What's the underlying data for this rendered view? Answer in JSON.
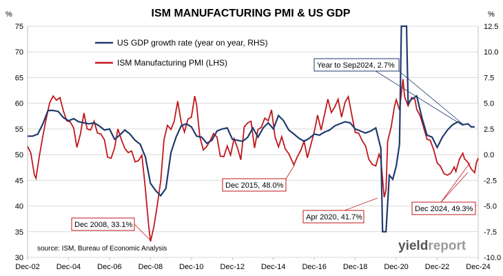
{
  "chart_data": {
    "type": "line",
    "title": "ISM MANUFACTURING PMI & US GDP",
    "left_unit": "%",
    "right_unit": "%",
    "left_axis": {
      "min": 30,
      "max": 75,
      "step": 5,
      "labels": [
        "30",
        "35",
        "40",
        "45",
        "50",
        "55",
        "60",
        "65",
        "70",
        "75"
      ]
    },
    "right_axis": {
      "min": -10,
      "max": 12.5,
      "step": 2.5,
      "labels": [
        "-10.0",
        "-7.5",
        "-5.0",
        "-2.5",
        "0.0",
        "2.5",
        "5.0",
        "7.5",
        "10.0",
        "12.5"
      ]
    },
    "x_axis": {
      "min": 2002.92,
      "max": 2024.92,
      "labels": [
        "Dec-02",
        "Dec-04",
        "Dec-06",
        "Dec-08",
        "Dec-10",
        "Dec-12",
        "Dec-14",
        "Dec-16",
        "Dec-18",
        "Dec-20",
        "Dec-22",
        "Dec-24"
      ]
    },
    "legend_position": "top-center",
    "colors": {
      "gdp": "#1f3a6e",
      "pmi": "#c0161b",
      "grid": "#d9d9d9"
    },
    "series": [
      {
        "name": "US GDP growth rate (year on year, RHS)",
        "axis": "right",
        "points": [
          [
            2002.92,
            1.8
          ],
          [
            2003.17,
            1.8
          ],
          [
            2003.42,
            2.0
          ],
          [
            2003.67,
            3.0
          ],
          [
            2003.92,
            4.3
          ],
          [
            2004.17,
            4.3
          ],
          [
            2004.42,
            4.2
          ],
          [
            2004.67,
            3.6
          ],
          [
            2004.92,
            3.3
          ],
          [
            2005.17,
            3.5
          ],
          [
            2005.42,
            3.2
          ],
          [
            2005.67,
            3.1
          ],
          [
            2005.92,
            3.0
          ],
          [
            2006.17,
            3.1
          ],
          [
            2006.42,
            2.8
          ],
          [
            2006.67,
            2.4
          ],
          [
            2006.92,
            2.5
          ],
          [
            2007.17,
            1.5
          ],
          [
            2007.42,
            1.9
          ],
          [
            2007.67,
            2.4
          ],
          [
            2007.92,
            2.0
          ],
          [
            2008.17,
            1.4
          ],
          [
            2008.42,
            1.0
          ],
          [
            2008.67,
            -0.2
          ],
          [
            2008.92,
            -2.8
          ],
          [
            2009.17,
            -3.5
          ],
          [
            2009.42,
            -4.0
          ],
          [
            2009.67,
            -3.3
          ],
          [
            2009.92,
            0.2
          ],
          [
            2010.17,
            1.7
          ],
          [
            2010.42,
            2.8
          ],
          [
            2010.67,
            3.0
          ],
          [
            2010.92,
            2.7
          ],
          [
            2011.17,
            1.8
          ],
          [
            2011.42,
            1.7
          ],
          [
            2011.67,
            1.1
          ],
          [
            2011.92,
            1.4
          ],
          [
            2012.17,
            2.3
          ],
          [
            2012.42,
            2.5
          ],
          [
            2012.67,
            2.6
          ],
          [
            2012.92,
            1.5
          ],
          [
            2013.17,
            1.4
          ],
          [
            2013.42,
            1.3
          ],
          [
            2013.67,
            1.7
          ],
          [
            2013.92,
            2.6
          ],
          [
            2014.17,
            1.7
          ],
          [
            2014.42,
            2.6
          ],
          [
            2014.67,
            3.1
          ],
          [
            2014.92,
            2.5
          ],
          [
            2015.17,
            3.8
          ],
          [
            2015.42,
            3.3
          ],
          [
            2015.67,
            2.4
          ],
          [
            2015.92,
            2.0
          ],
          [
            2016.17,
            1.6
          ],
          [
            2016.42,
            1.3
          ],
          [
            2016.67,
            1.6
          ],
          [
            2016.92,
            2.0
          ],
          [
            2017.17,
            1.9
          ],
          [
            2017.42,
            2.2
          ],
          [
            2017.67,
            2.4
          ],
          [
            2017.92,
            2.8
          ],
          [
            2018.17,
            3.0
          ],
          [
            2018.42,
            3.2
          ],
          [
            2018.67,
            3.1
          ],
          [
            2018.92,
            2.5
          ],
          [
            2019.17,
            2.3
          ],
          [
            2019.42,
            2.1
          ],
          [
            2019.67,
            2.3
          ],
          [
            2019.92,
            2.6
          ],
          [
            2020.17,
            0.6
          ],
          [
            2020.25,
            -7.5
          ],
          [
            2020.42,
            -7.5
          ],
          [
            2020.58,
            -2.0
          ],
          [
            2020.75,
            -2.4
          ],
          [
            2020.92,
            -1.1
          ],
          [
            2021.08,
            1.0
          ],
          [
            2021.17,
            12.5
          ],
          [
            2021.42,
            12.5
          ],
          [
            2021.5,
            5.0
          ],
          [
            2021.67,
            5.4
          ],
          [
            2021.92,
            5.7
          ],
          [
            2022.17,
            3.6
          ],
          [
            2022.42,
            1.9
          ],
          [
            2022.67,
            1.7
          ],
          [
            2022.92,
            0.7
          ],
          [
            2023.17,
            1.7
          ],
          [
            2023.42,
            2.4
          ],
          [
            2023.67,
            2.9
          ],
          [
            2023.92,
            3.2
          ],
          [
            2024.17,
            2.9
          ],
          [
            2024.42,
            3.0
          ],
          [
            2024.58,
            2.7
          ],
          [
            2024.75,
            2.7
          ]
        ]
      },
      {
        "name": "ISM Manufacturing PMI (LHS)",
        "axis": "left",
        "points": [
          [
            2002.92,
            51.6
          ],
          [
            2003.08,
            50.3
          ],
          [
            2003.25,
            46.1
          ],
          [
            2003.33,
            45.4
          ],
          [
            2003.5,
            49.8
          ],
          [
            2003.67,
            53.7
          ],
          [
            2003.83,
            57.0
          ],
          [
            2004.0,
            60.1
          ],
          [
            2004.17,
            61.4
          ],
          [
            2004.33,
            60.6
          ],
          [
            2004.5,
            61.1
          ],
          [
            2004.67,
            58.5
          ],
          [
            2004.83,
            56.6
          ],
          [
            2005.0,
            56.4
          ],
          [
            2005.17,
            55.2
          ],
          [
            2005.33,
            51.4
          ],
          [
            2005.5,
            54.0
          ],
          [
            2005.67,
            58.1
          ],
          [
            2005.83,
            55.0
          ],
          [
            2006.0,
            54.8
          ],
          [
            2006.17,
            56.5
          ],
          [
            2006.33,
            54.2
          ],
          [
            2006.5,
            54.0
          ],
          [
            2006.67,
            52.9
          ],
          [
            2006.83,
            49.5
          ],
          [
            2007.0,
            49.3
          ],
          [
            2007.17,
            51.3
          ],
          [
            2007.33,
            55.0
          ],
          [
            2007.5,
            52.9
          ],
          [
            2007.67,
            51.2
          ],
          [
            2007.83,
            50.4
          ],
          [
            2008.0,
            50.7
          ],
          [
            2008.17,
            48.6
          ],
          [
            2008.33,
            48.8
          ],
          [
            2008.5,
            49.9
          ],
          [
            2008.67,
            43.5
          ],
          [
            2008.83,
            36.2
          ],
          [
            2008.92,
            33.1
          ],
          [
            2009.08,
            35.8
          ],
          [
            2009.25,
            40.1
          ],
          [
            2009.42,
            44.8
          ],
          [
            2009.58,
            52.9
          ],
          [
            2009.75,
            55.7
          ],
          [
            2009.92,
            54.9
          ],
          [
            2010.08,
            56.5
          ],
          [
            2010.25,
            60.4
          ],
          [
            2010.42,
            56.3
          ],
          [
            2010.58,
            54.4
          ],
          [
            2010.75,
            56.9
          ],
          [
            2010.92,
            57.3
          ],
          [
            2011.08,
            61.4
          ],
          [
            2011.17,
            59.7
          ],
          [
            2011.33,
            53.5
          ],
          [
            2011.5,
            50.9
          ],
          [
            2011.67,
            51.6
          ],
          [
            2011.83,
            52.7
          ],
          [
            2012.0,
            54.1
          ],
          [
            2012.17,
            53.4
          ],
          [
            2012.33,
            49.7
          ],
          [
            2012.5,
            49.6
          ],
          [
            2012.67,
            51.7
          ],
          [
            2012.83,
            49.9
          ],
          [
            2013.0,
            53.1
          ],
          [
            2013.17,
            51.3
          ],
          [
            2013.33,
            49.0
          ],
          [
            2013.5,
            55.4
          ],
          [
            2013.67,
            56.2
          ],
          [
            2013.83,
            56.5
          ],
          [
            2014.0,
            51.3
          ],
          [
            2014.17,
            54.9
          ],
          [
            2014.33,
            55.3
          ],
          [
            2014.5,
            57.1
          ],
          [
            2014.67,
            56.6
          ],
          [
            2014.83,
            58.7
          ],
          [
            2015.0,
            53.5
          ],
          [
            2015.17,
            51.5
          ],
          [
            2015.33,
            53.5
          ],
          [
            2015.5,
            51.1
          ],
          [
            2015.67,
            50.2
          ],
          [
            2015.92,
            48.0
          ],
          [
            2016.08,
            49.5
          ],
          [
            2016.25,
            50.8
          ],
          [
            2016.42,
            52.6
          ],
          [
            2016.58,
            49.4
          ],
          [
            2016.75,
            51.9
          ],
          [
            2016.92,
            54.5
          ],
          [
            2017.08,
            57.7
          ],
          [
            2017.25,
            54.8
          ],
          [
            2017.42,
            57.8
          ],
          [
            2017.58,
            60.8
          ],
          [
            2017.75,
            58.2
          ],
          [
            2017.92,
            59.3
          ],
          [
            2018.08,
            60.8
          ],
          [
            2018.25,
            57.3
          ],
          [
            2018.42,
            60.2
          ],
          [
            2018.58,
            61.3
          ],
          [
            2018.75,
            57.7
          ],
          [
            2018.92,
            54.3
          ],
          [
            2019.08,
            54.2
          ],
          [
            2019.25,
            52.8
          ],
          [
            2019.42,
            51.7
          ],
          [
            2019.58,
            49.1
          ],
          [
            2019.75,
            48.1
          ],
          [
            2019.92,
            47.8
          ],
          [
            2020.08,
            50.1
          ],
          [
            2020.17,
            49.1
          ],
          [
            2020.33,
            41.7
          ],
          [
            2020.42,
            43.1
          ],
          [
            2020.5,
            52.6
          ],
          [
            2020.67,
            55.4
          ],
          [
            2020.83,
            59.3
          ],
          [
            2020.92,
            60.7
          ],
          [
            2021.08,
            58.7
          ],
          [
            2021.25,
            64.7
          ],
          [
            2021.33,
            61.2
          ],
          [
            2021.5,
            59.5
          ],
          [
            2021.67,
            61.1
          ],
          [
            2021.83,
            60.8
          ],
          [
            2021.92,
            58.8
          ],
          [
            2022.08,
            57.6
          ],
          [
            2022.25,
            55.4
          ],
          [
            2022.42,
            53.0
          ],
          [
            2022.58,
            52.8
          ],
          [
            2022.75,
            50.9
          ],
          [
            2022.92,
            48.4
          ],
          [
            2023.08,
            47.7
          ],
          [
            2023.25,
            46.3
          ],
          [
            2023.42,
            46.0
          ],
          [
            2023.58,
            46.4
          ],
          [
            2023.75,
            47.6
          ],
          [
            2023.83,
            46.7
          ],
          [
            2024.0,
            49.1
          ],
          [
            2024.17,
            50.3
          ],
          [
            2024.25,
            49.2
          ],
          [
            2024.42,
            48.5
          ],
          [
            2024.58,
            47.2
          ],
          [
            2024.75,
            46.5
          ],
          [
            2024.83,
            48.4
          ],
          [
            2024.92,
            49.3
          ]
        ]
      }
    ],
    "annotations": [
      {
        "text": "Year to Sep2024, 2.7%",
        "series": 0
      },
      {
        "text": "Dec 2015, 48.0%",
        "series": 1
      },
      {
        "text": "Dec 2008, 33.1%",
        "series": 1
      },
      {
        "text": "Apr 2020, 41.7%",
        "series": 1
      },
      {
        "text": "Dec 2024, 49.3%",
        "series": 1
      }
    ],
    "source": "source: ISM, Bureau of Economic Analysis",
    "logo": {
      "part1": "yield",
      "part2": "report"
    }
  }
}
